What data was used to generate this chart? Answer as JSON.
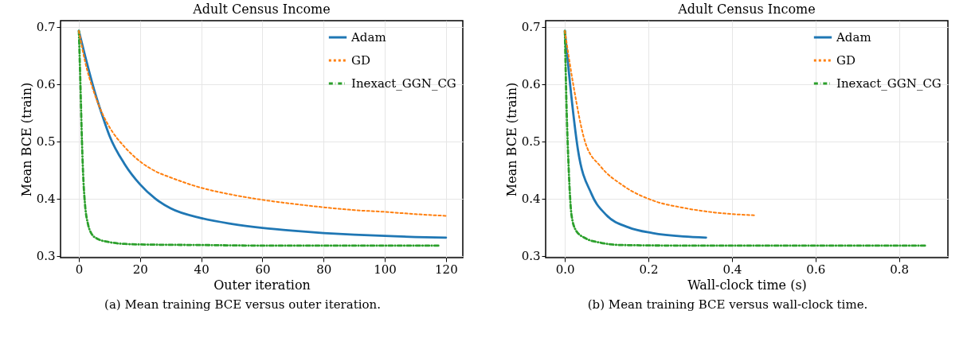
{
  "chart_data": [
    {
      "type": "line",
      "title": "Adult Census Income",
      "xlabel": "Outer iteration",
      "ylabel": "Mean BCE (train)",
      "xlim": [
        -6,
        125.5
      ],
      "ylim": [
        0.297,
        0.711
      ],
      "xticks": [
        0,
        20,
        40,
        60,
        80,
        100,
        120
      ],
      "yticks": [
        0.3,
        0.4,
        0.5,
        0.6,
        0.7
      ],
      "grid": true,
      "legend": "top right",
      "annotations": [
        "(a) Mean training BCE versus outer iteration."
      ],
      "series": [
        {
          "name": "Adam",
          "color": "#1f77b4",
          "line_style": "solid",
          "x": [
            0,
            2,
            5,
            8,
            10,
            15,
            20,
            25,
            30,
            40,
            50,
            60,
            70,
            80,
            90,
            100,
            110,
            120
          ],
          "values": [
            0.693,
            0.65,
            0.59,
            0.54,
            0.51,
            0.46,
            0.425,
            0.4,
            0.383,
            0.366,
            0.356,
            0.349,
            0.344,
            0.34,
            0.337,
            0.335,
            0.333,
            0.332
          ]
        },
        {
          "name": "GD",
          "color": "#ff7f0e",
          "line_style": "dashed",
          "x": [
            0,
            2,
            5,
            8,
            10,
            15,
            20,
            25,
            30,
            40,
            50,
            60,
            70,
            80,
            90,
            100,
            110,
            120
          ],
          "values": [
            0.693,
            0.64,
            0.585,
            0.545,
            0.525,
            0.49,
            0.465,
            0.448,
            0.437,
            0.419,
            0.407,
            0.398,
            0.391,
            0.385,
            0.38,
            0.377,
            0.373,
            0.37
          ]
        },
        {
          "name": "Inexact_GGN_CG",
          "color": "#2ca02c",
          "line_style": "dashdot",
          "x": [
            0,
            0.5,
            1,
            1.5,
            2,
            3,
            4,
            6,
            10,
            15,
            20,
            40,
            60,
            90,
            118
          ],
          "values": [
            0.693,
            0.6,
            0.5,
            0.43,
            0.39,
            0.355,
            0.34,
            0.33,
            0.324,
            0.321,
            0.32,
            0.319,
            0.318,
            0.318,
            0.318
          ]
        }
      ]
    },
    {
      "type": "line",
      "title": "Adult Census Income",
      "xlabel": "Wall-clock time (s)",
      "ylabel": "Mean BCE (train)",
      "xlim": [
        -0.046,
        0.917
      ],
      "ylim": [
        0.297,
        0.711
      ],
      "xticks": [
        {
          "value": 0,
          "label": "0.0"
        },
        0.2,
        0.4,
        0.6,
        0.8
      ],
      "yticks": [
        0.3,
        0.4,
        0.5,
        0.6,
        0.7
      ],
      "grid": true,
      "legend": "top right",
      "annotations": [
        "(b) Mean training BCE versus wall-clock time."
      ],
      "series": [
        {
          "name": "Adam",
          "color": "#1f77b4",
          "line_style": "solid",
          "x": [
            0,
            0.0125,
            0.031,
            0.064,
            0.1,
            0.152,
            0.21,
            0.284,
            0.338
          ],
          "values": [
            0.693,
            0.6,
            0.487,
            0.408,
            0.371,
            0.35,
            0.34,
            0.334,
            0.332
          ]
        },
        {
          "name": "GD",
          "color": "#ff7f0e",
          "line_style": "dashed",
          "x": [
            0,
            0.02,
            0.049,
            0.086,
            0.137,
            0.21,
            0.284,
            0.357,
            0.453
          ],
          "values": [
            0.693,
            0.6,
            0.498,
            0.456,
            0.424,
            0.397,
            0.384,
            0.376,
            0.371
          ]
        },
        {
          "name": "Inexact_GGN_CG",
          "color": "#2ca02c",
          "line_style": "dashdot",
          "x": [
            0,
            0.004,
            0.009,
            0.016,
            0.027,
            0.049,
            0.086,
            0.137,
            0.284,
            0.867
          ],
          "values": [
            0.693,
            0.562,
            0.456,
            0.371,
            0.344,
            0.331,
            0.323,
            0.319,
            0.318,
            0.318
          ]
        }
      ]
    }
  ]
}
